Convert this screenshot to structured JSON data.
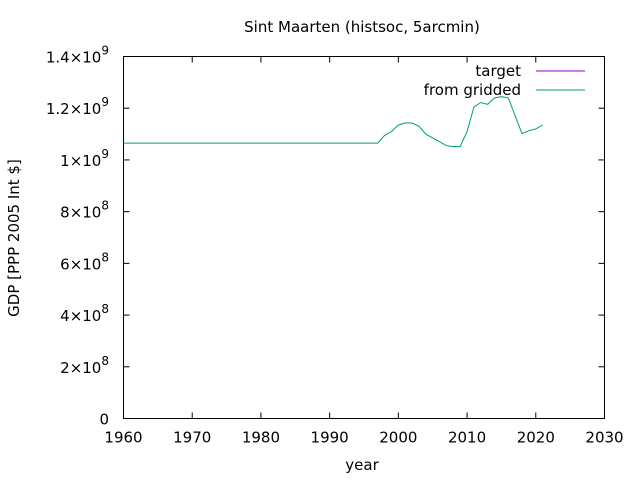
{
  "chart_data": {
    "type": "line",
    "title": "Sint Maarten (histsoc, 5arcmin)",
    "xlabel": "year",
    "ylabel": "GDP [PPP 2005 Int $]",
    "xlim": [
      1960,
      2030
    ],
    "ylim": [
      0,
      1400000000
    ],
    "x_ticks": [
      1960,
      1970,
      1980,
      1990,
      2000,
      2010,
      2020,
      2030
    ],
    "x_tick_labels": [
      "1960",
      "1970",
      "1980",
      "1990",
      "2000",
      "2010",
      "2020",
      "2030"
    ],
    "y_ticks": [
      0,
      200000000,
      400000000,
      600000000,
      800000000,
      1000000000,
      1200000000,
      1400000000
    ],
    "y_tick_labels": [
      {
        "base": "0",
        "exp": ""
      },
      {
        "base": "2×10",
        "exp": "8"
      },
      {
        "base": "4×10",
        "exp": "8"
      },
      {
        "base": "6×10",
        "exp": "8"
      },
      {
        "base": "8×10",
        "exp": "8"
      },
      {
        "base": "1×10",
        "exp": "9"
      },
      {
        "base": "1.2×10",
        "exp": "9"
      },
      {
        "base": "1.4×10",
        "exp": "9"
      }
    ],
    "legend_position": "top-right",
    "grid": false,
    "series": [
      {
        "name": "target",
        "color": "#9400d3",
        "x": [],
        "y": []
      },
      {
        "name": "from gridded",
        "color": "#009e73",
        "x": [
          1960,
          1965,
          1970,
          1975,
          1980,
          1985,
          1990,
          1995,
          1997,
          1998,
          1999,
          2000,
          2001,
          2002,
          2003,
          2004,
          2005,
          2006,
          2007,
          2008,
          2009,
          2010,
          2011,
          2012,
          2013,
          2014,
          2015,
          2016,
          2017,
          2018,
          2019,
          2020,
          2021
        ],
        "y": [
          1065000000,
          1065000000,
          1065000000,
          1065000000,
          1065000000,
          1065000000,
          1065000000,
          1065000000,
          1065000000,
          1095000000,
          1110000000,
          1135000000,
          1143000000,
          1143000000,
          1130000000,
          1100000000,
          1085000000,
          1070000000,
          1055000000,
          1052000000,
          1052000000,
          1110000000,
          1205000000,
          1222000000,
          1215000000,
          1240000000,
          1245000000,
          1240000000,
          1170000000,
          1102000000,
          1113000000,
          1120000000,
          1135000000
        ]
      }
    ]
  }
}
